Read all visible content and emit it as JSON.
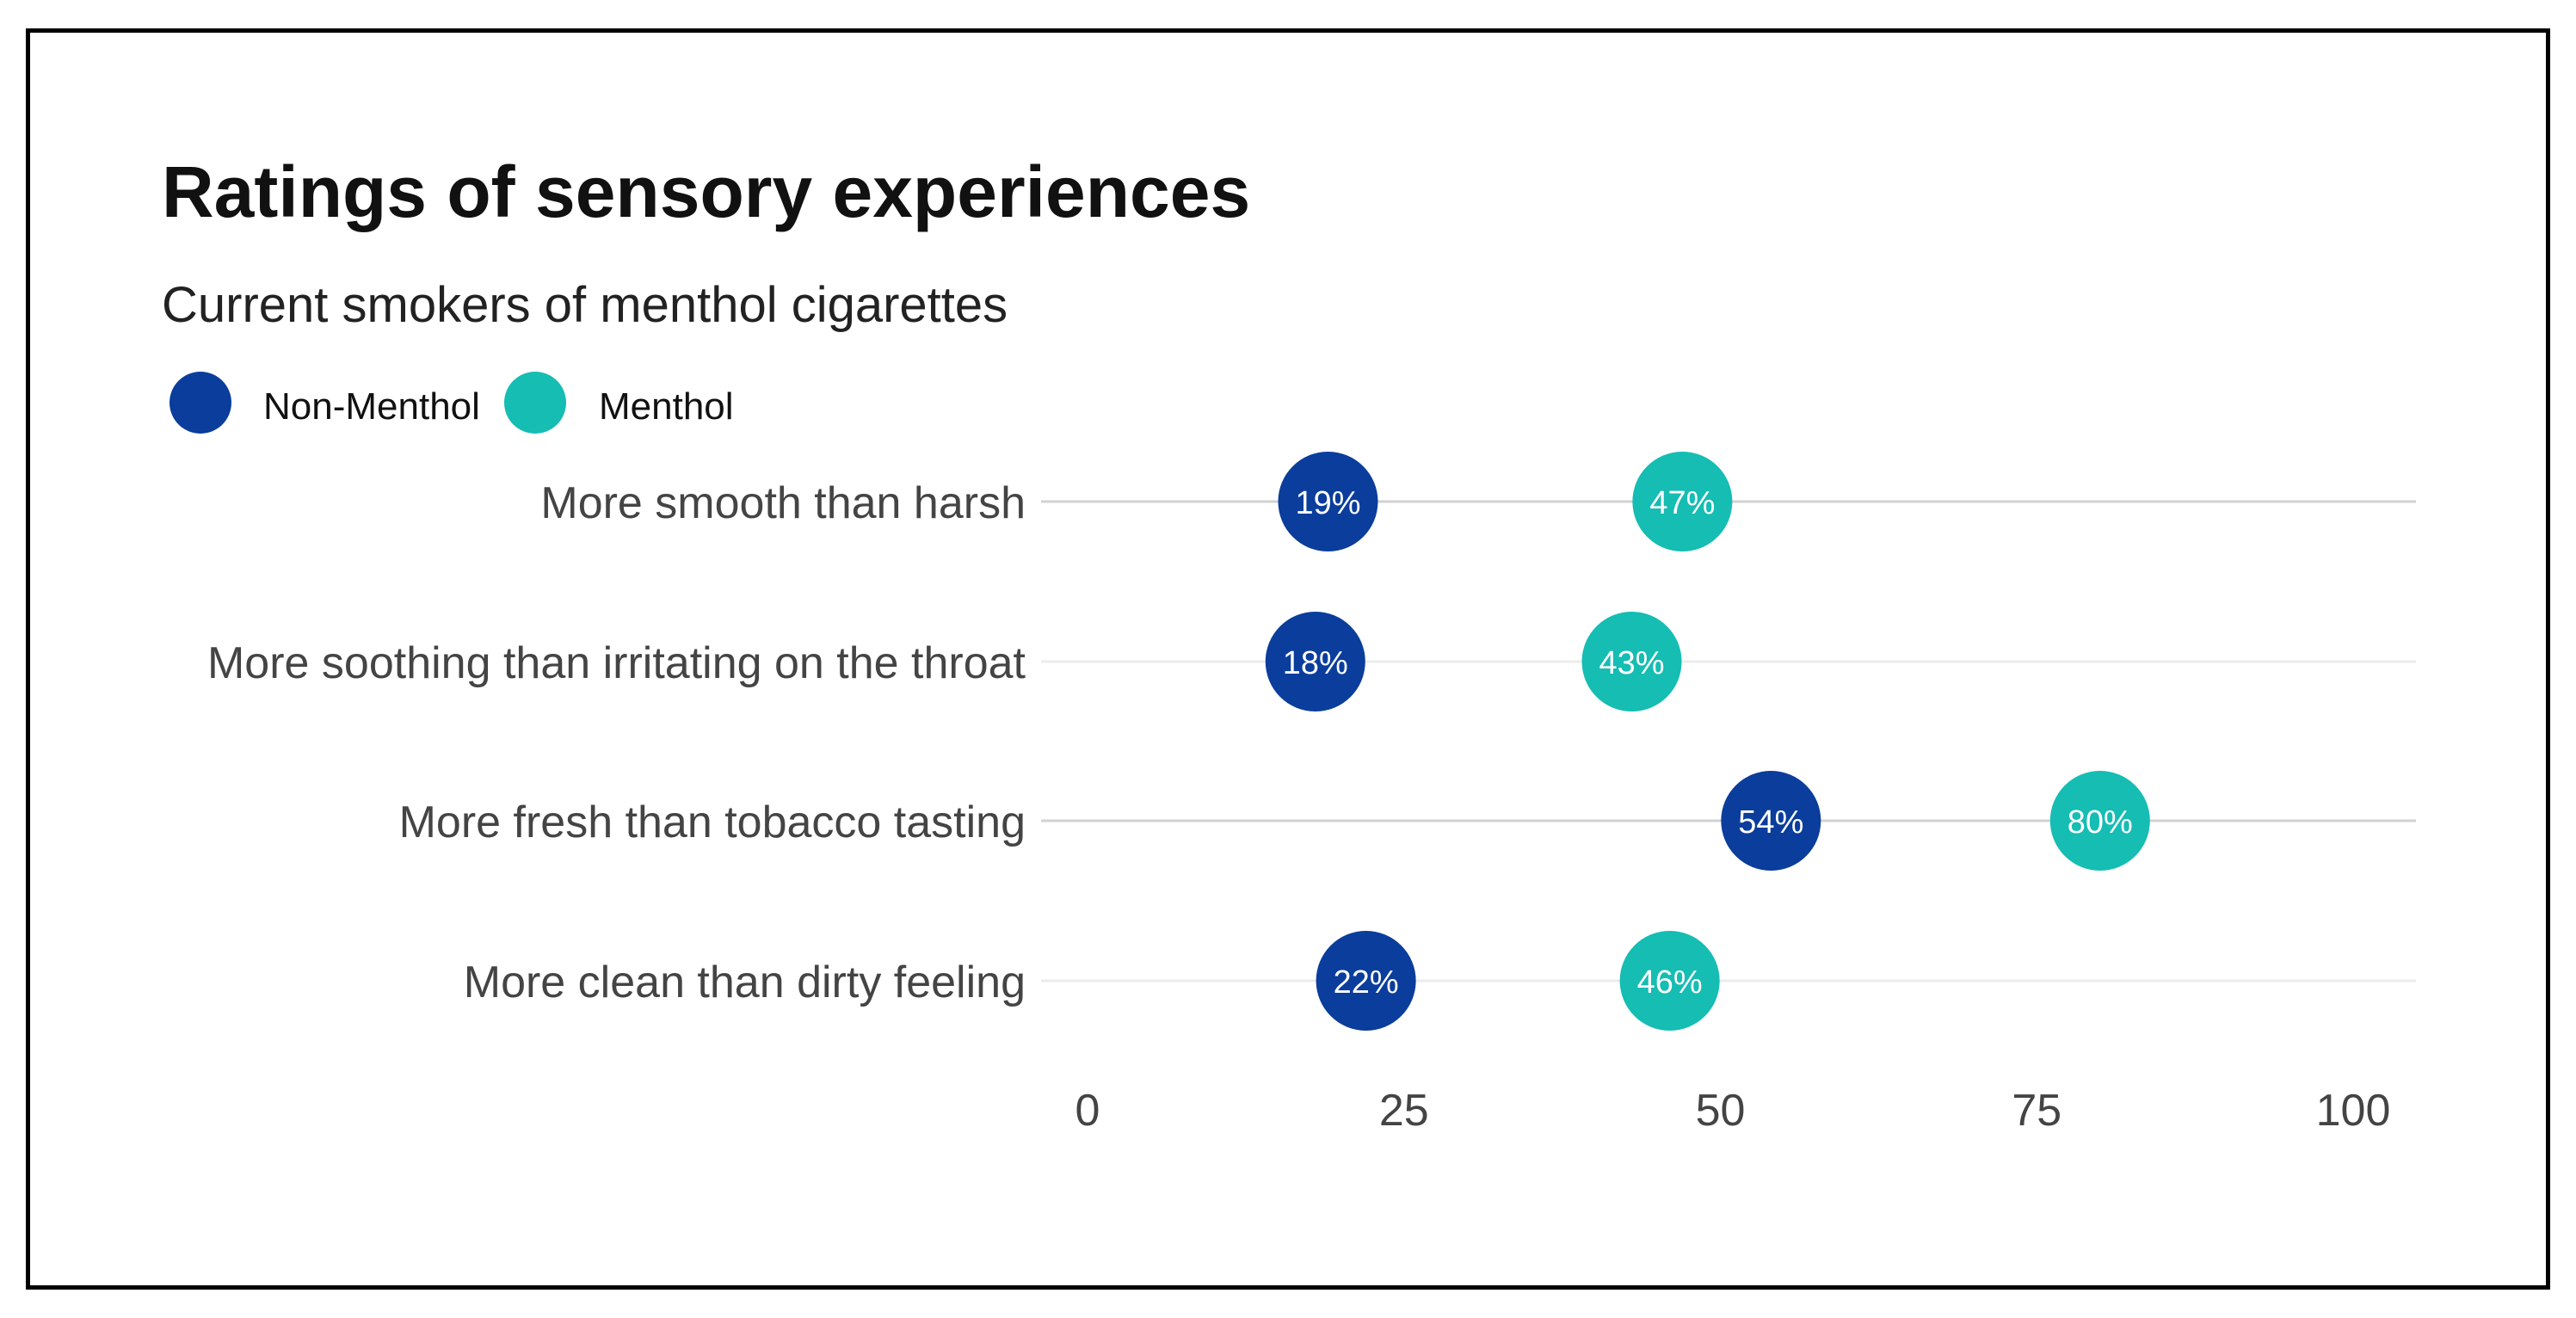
{
  "chart_data": {
    "type": "scatter",
    "title": "Ratings of sensory experiences",
    "subtitle": "Current smokers of menthol cigarettes",
    "legend": {
      "placement": "top-left",
      "items": [
        {
          "name": "Non-Menthol",
          "color": "#0a3d9c"
        },
        {
          "name": "Menthol",
          "color": "#15bdb3"
        }
      ]
    },
    "categories": [
      "More smooth than harsh",
      "More soothing than irritating on the throat",
      "More fresh than tobacco tasting",
      "More clean than dirty feeling"
    ],
    "series": [
      {
        "name": "Non-Menthol",
        "color": "#0a3d9c",
        "values": [
          19,
          18,
          54,
          22
        ],
        "labels": [
          "19%",
          "18%",
          "54%",
          "22%"
        ]
      },
      {
        "name": "Menthol",
        "color": "#15bdb3",
        "values": [
          47,
          43,
          80,
          46
        ],
        "labels": [
          "47%",
          "43%",
          "80%",
          "46%"
        ]
      }
    ],
    "xlim": [
      0,
      100
    ],
    "xticks": [
      0,
      25,
      50,
      75,
      100
    ],
    "xtick_labels": [
      "0",
      "25",
      "50",
      "75",
      "100"
    ],
    "xlabel": "",
    "ylabel": "",
    "grid": "horizontal"
  }
}
